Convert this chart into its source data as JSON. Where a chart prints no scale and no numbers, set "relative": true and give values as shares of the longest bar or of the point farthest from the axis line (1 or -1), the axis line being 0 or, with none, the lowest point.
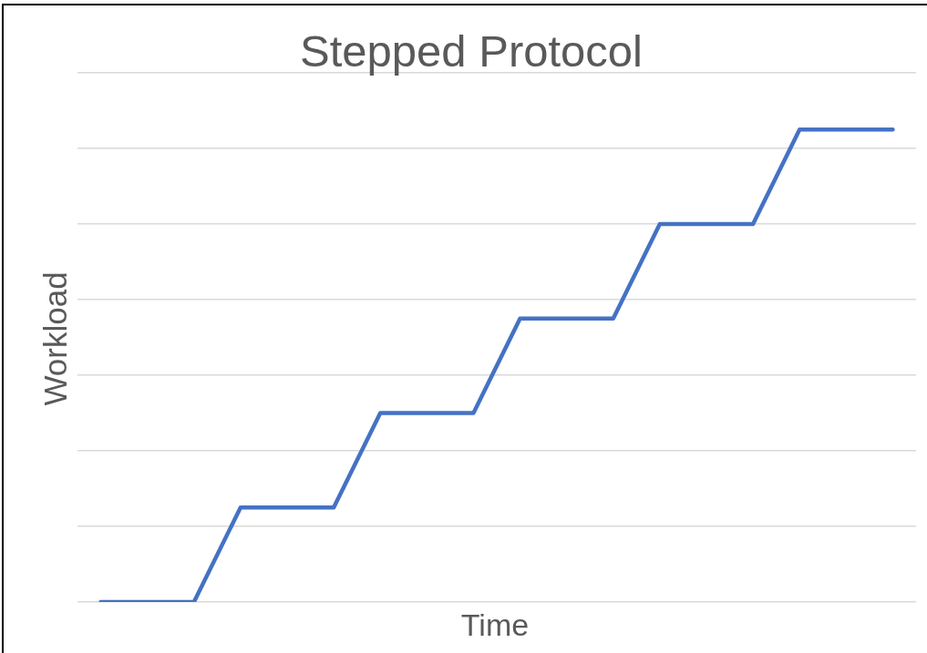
{
  "chart_data": {
    "type": "line",
    "title": "Stepped Protocol",
    "xlabel": "Time",
    "ylabel": "Workload",
    "categories": [
      null,
      null,
      null,
      null,
      null,
      null,
      null,
      null,
      null,
      null,
      null,
      null,
      null,
      null,
      null,
      null,
      null,
      null
    ],
    "values": [
      0,
      0,
      0,
      0.2,
      0.2,
      0.2,
      0.4,
      0.4,
      0.4,
      0.6,
      0.6,
      0.6,
      0.8,
      0.8,
      0.8,
      1,
      1,
      1
    ],
    "color": "#4472c4",
    "relative": true,
    "grid": "y",
    "marker": "none",
    "line_style": "solid"
  }
}
